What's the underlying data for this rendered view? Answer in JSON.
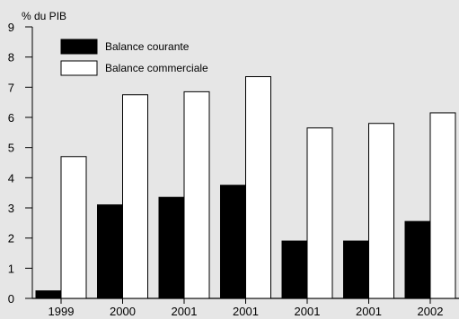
{
  "chart_data": {
    "type": "bar",
    "title": "",
    "ylabel": "% du PIB",
    "xlabel": "",
    "ylim": [
      0,
      9
    ],
    "yticks": [
      0,
      1,
      2,
      3,
      4,
      5,
      6,
      7,
      8,
      9
    ],
    "categories": [
      "1999",
      "2000",
      "2001",
      "2001",
      "2001",
      "2001",
      "2002"
    ],
    "series": [
      {
        "name": "Balance courante",
        "color": "#000000",
        "values": [
          0.25,
          3.1,
          3.35,
          3.75,
          1.9,
          1.9,
          2.55
        ]
      },
      {
        "name": "Balance commerciale",
        "color": "#ffffff",
        "values": [
          4.7,
          6.75,
          6.85,
          7.35,
          5.65,
          5.8,
          6.15
        ]
      }
    ],
    "grid": false,
    "legend_position": "top-left"
  }
}
